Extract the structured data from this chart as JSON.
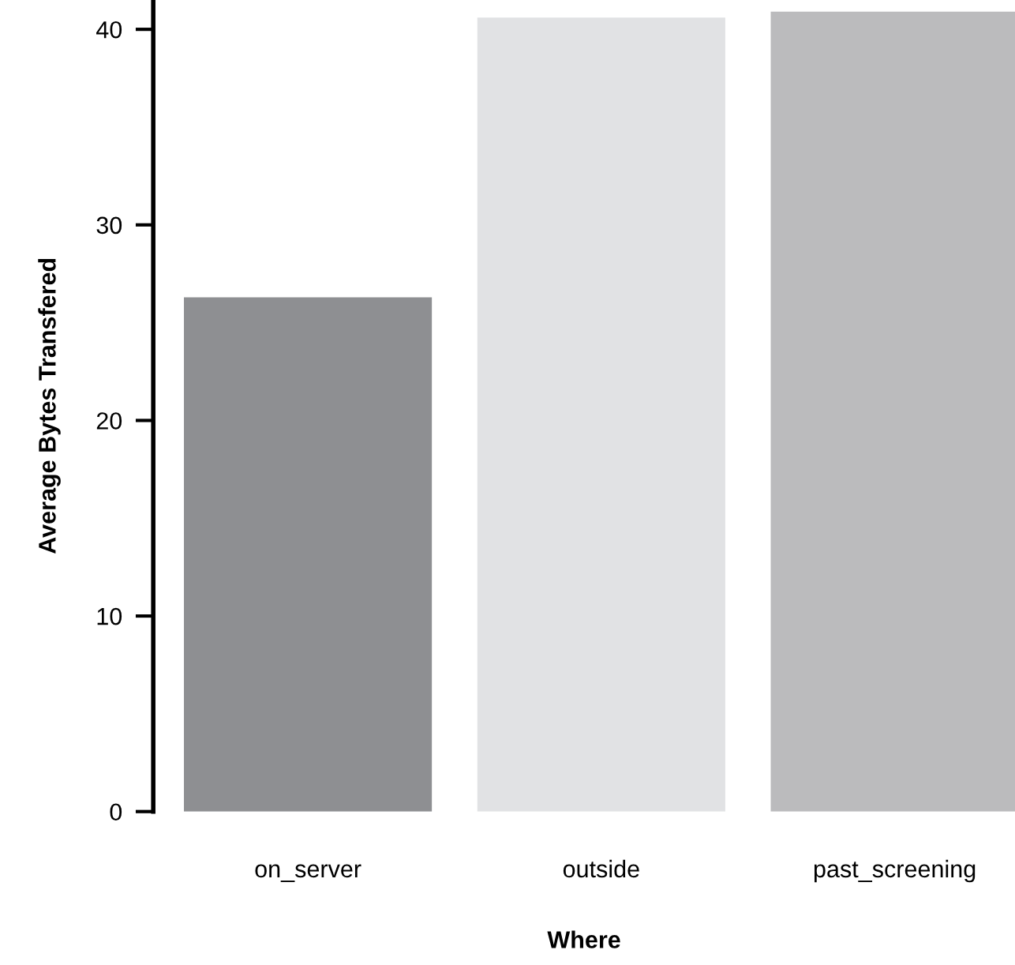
{
  "chart_data": {
    "type": "bar",
    "xlabel": "Where",
    "ylabel": "Average Bytes Transfered",
    "categories": [
      "on_server",
      "outside",
      "past_screening"
    ],
    "values": [
      26.3,
      40.6,
      40.9
    ],
    "colors": [
      "#8e8f92",
      "#e1e2e4",
      "#bbbbbd"
    ],
    "ylim": [
      0,
      41.5
    ],
    "yticks": [
      0,
      10,
      20,
      30,
      40
    ],
    "grid": false,
    "legend": false
  }
}
